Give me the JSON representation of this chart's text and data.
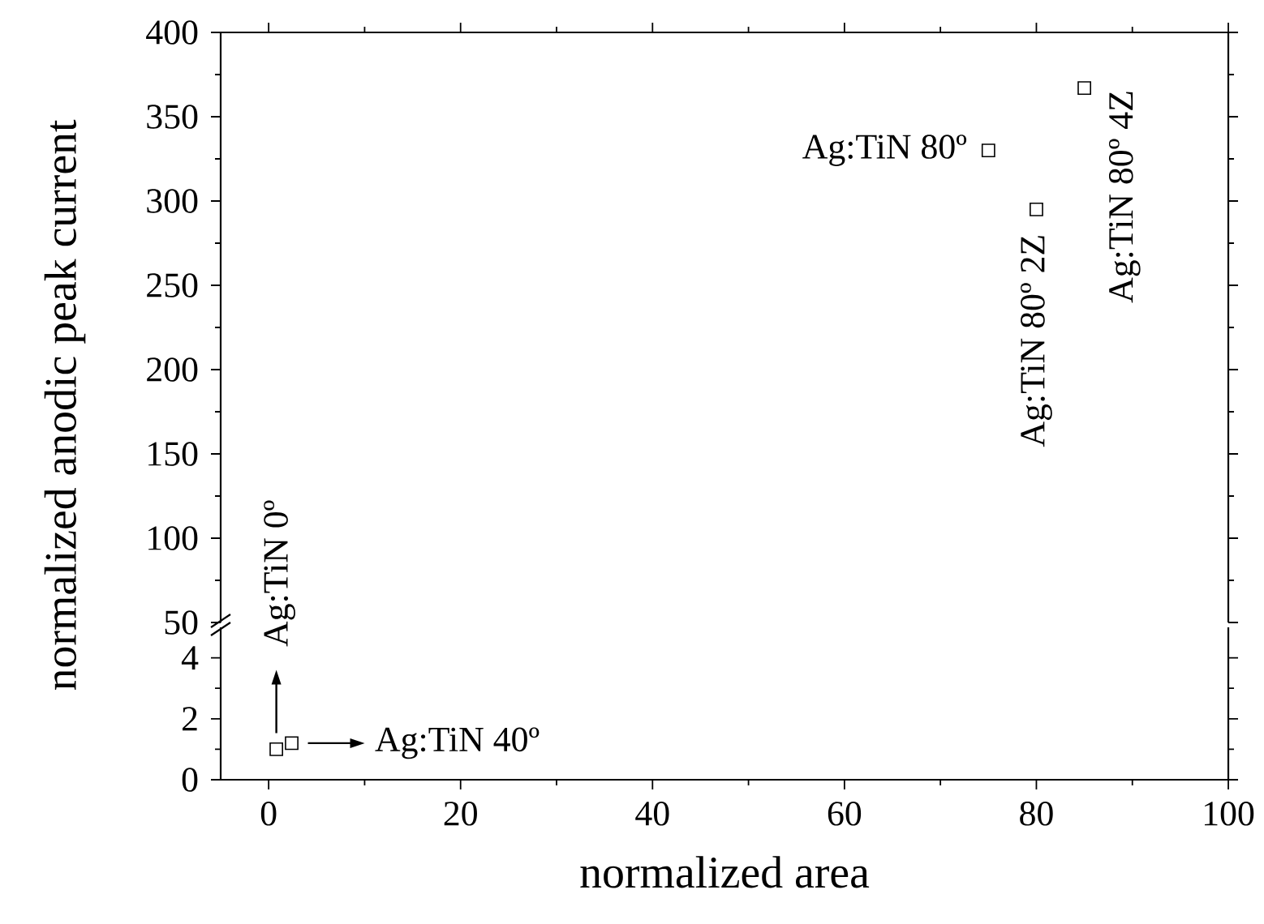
{
  "chart_data": [
    {
      "type": "scatter",
      "ylabel": "normalized anodic peak current",
      "xlim": [
        -5,
        100
      ],
      "ylim": [
        50,
        400
      ],
      "xticks": [
        0,
        20,
        40,
        60,
        80,
        100
      ],
      "yticks": [
        50,
        100,
        150,
        200,
        250,
        300,
        350,
        400
      ],
      "tick_labels": "y",
      "marker": "square",
      "series": [
        {
          "color": "#000000",
          "x": [
            75,
            80,
            85
          ],
          "values": [
            330,
            295,
            367
          ]
        }
      ],
      "annotations": [
        {
          "text": "Ag:TiN 80º",
          "x": 75,
          "y": 330
        },
        {
          "text": "Ag:TiN 80º 2Z",
          "x": 80,
          "y": 295
        },
        {
          "text": "Ag:TiN 80º 4Z",
          "x": 85,
          "y": 367
        }
      ]
    },
    {
      "type": "scatter",
      "xlabel": "normalized area",
      "xlim": [
        -5,
        100
      ],
      "ylim": [
        0,
        5
      ],
      "xticks": [
        0,
        20,
        40,
        60,
        80,
        100
      ],
      "yticks": [
        0,
        2,
        4
      ],
      "marker": "square",
      "series": [
        {
          "color": "#000000",
          "x": [
            0.8,
            2.4
          ],
          "values": [
            1.0,
            1.2
          ]
        }
      ],
      "annotations": [
        {
          "text": "Ag:TiN 0º",
          "x": 0.8,
          "y": 1.0
        },
        {
          "text": "Ag:TiN 40º",
          "x": 2.4,
          "y": 1.2
        }
      ]
    }
  ]
}
